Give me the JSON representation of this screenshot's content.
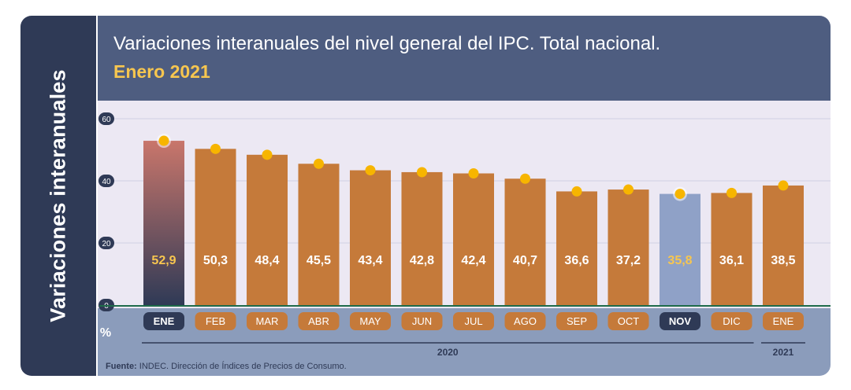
{
  "side_title": "Variaciones interanuales",
  "header": {
    "title": "Variaciones interanuales del nivel general del IPC. Total nacional.",
    "subtitle": "Enero 2021"
  },
  "source": {
    "label": "Fuente:",
    "text": " INDEC. Dirección de Índices de Precios de Consumo."
  },
  "colors": {
    "bar": "#c57a3a",
    "dot": "#f7b500",
    "highlight_bar_top": "#c9766b",
    "highlight_bar_bottom": "#2f3a56",
    "nov_bar": "#8fa1c7",
    "pill_dark": "#2f3a56"
  },
  "chart_data": {
    "type": "bar",
    "unit": "%",
    "categories": [
      "ENE",
      "FEB",
      "MAR",
      "ABR",
      "MAY",
      "JUN",
      "JUL",
      "AGO",
      "SEP",
      "OCT",
      "NOV",
      "DIC",
      "ENE"
    ],
    "values": [
      52.9,
      50.3,
      48.4,
      45.5,
      43.4,
      42.8,
      42.4,
      40.7,
      36.6,
      37.2,
      35.8,
      36.1,
      38.5
    ],
    "value_labels": [
      "52,9",
      "50,3",
      "48,4",
      "45,5",
      "43,4",
      "42,8",
      "42,4",
      "40,7",
      "36,6",
      "37,2",
      "35,8",
      "36,1",
      "38,5"
    ],
    "highlight": [
      0,
      10
    ],
    "year_groups": [
      {
        "label": "2020",
        "from": 0,
        "to": 11
      },
      {
        "label": "2021",
        "from": 12,
        "to": 12
      }
    ],
    "yticks": [
      "0",
      "20",
      "40",
      "60"
    ],
    "ytick_values": [
      0,
      20,
      40,
      60
    ],
    "ylim": [
      0,
      60
    ],
    "grid": true
  }
}
